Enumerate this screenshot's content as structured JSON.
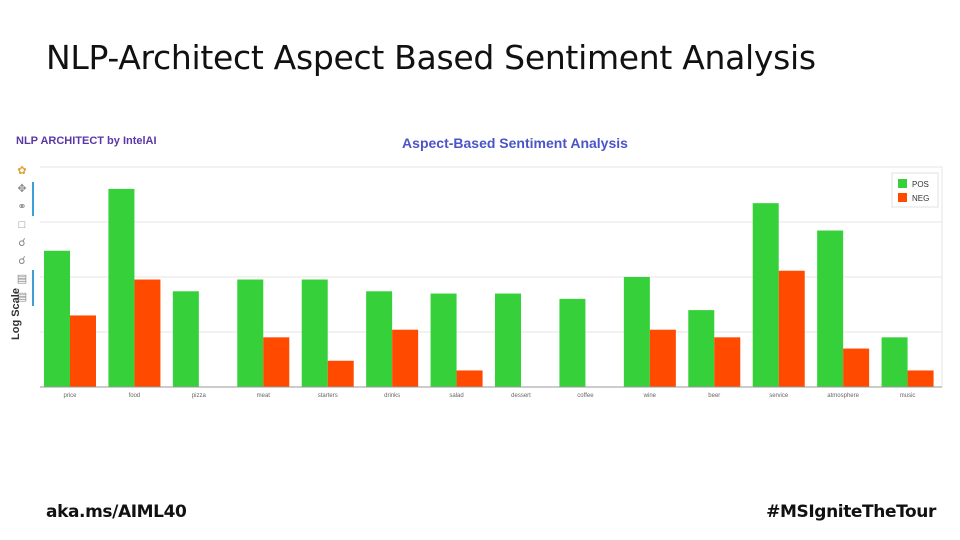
{
  "slide": {
    "title": "NLP-Architect Aspect Based Sentiment Analysis",
    "footer_left": "aka.ms/AIML40",
    "footer_right": "#MSIgniteTheTour"
  },
  "app": {
    "brand": "NLP ARCHITECT by IntelAI",
    "toolbar_icons": [
      "logo-icon",
      "pan-icon",
      "lasso-icon",
      "save-icon",
      "zoom-in-icon",
      "zoom-out-icon",
      "hover-icon",
      "tap-icon"
    ],
    "y_toggle_label": "Log Scale"
  },
  "colors": {
    "pos": "#36d13a",
    "neg": "#ff4a00",
    "title": "#4a55c8",
    "brand": "#5a37a6"
  },
  "chart_data": {
    "type": "bar",
    "title": "Aspect-Based Sentiment Analysis",
    "xlabel": "",
    "ylabel": "",
    "y_scale": "log",
    "ylim": [
      1,
      10000
    ],
    "grid": true,
    "legend_position": "top-right",
    "categories": [
      "price",
      "food",
      "pizza",
      "meat",
      "starters",
      "drinks",
      "salad",
      "dessert",
      "coffee",
      "wine",
      "beer",
      "service",
      "atmosphere",
      "music"
    ],
    "series": [
      {
        "name": "POS",
        "values": [
          300,
          4000,
          55,
          90,
          90,
          55,
          50,
          50,
          40,
          100,
          25,
          2200,
          700,
          8
        ]
      },
      {
        "name": "NEG",
        "values": [
          20,
          90,
          0,
          8,
          3,
          11,
          2,
          0,
          0,
          11,
          8,
          130,
          5,
          2
        ]
      }
    ]
  }
}
